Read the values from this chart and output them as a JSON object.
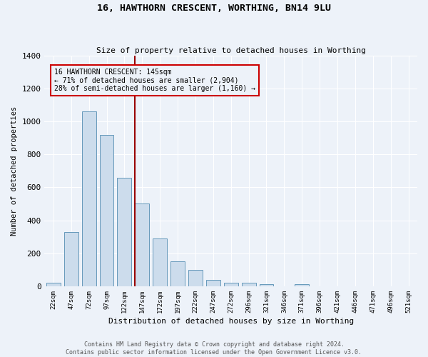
{
  "title": "16, HAWTHORN CRESCENT, WORTHING, BN14 9LU",
  "subtitle": "Size of property relative to detached houses in Worthing",
  "xlabel": "Distribution of detached houses by size in Worthing",
  "ylabel": "Number of detached properties",
  "bar_color": "#ccdcec",
  "bar_edge_color": "#6699bb",
  "bg_color": "#edf2f9",
  "grid_color": "#ffffff",
  "categories": [
    "22sqm",
    "47sqm",
    "72sqm",
    "97sqm",
    "122sqm",
    "147sqm",
    "172sqm",
    "197sqm",
    "222sqm",
    "247sqm",
    "272sqm",
    "296sqm",
    "321sqm",
    "346sqm",
    "371sqm",
    "396sqm",
    "421sqm",
    "446sqm",
    "471sqm",
    "496sqm",
    "521sqm"
  ],
  "values": [
    20,
    330,
    1060,
    920,
    660,
    500,
    290,
    150,
    100,
    37,
    20,
    20,
    12,
    0,
    12,
    0,
    0,
    0,
    0,
    0,
    0
  ],
  "ylim": [
    0,
    1400
  ],
  "yticks": [
    0,
    200,
    400,
    600,
    800,
    1000,
    1200,
    1400
  ],
  "vline_index": 5,
  "annotation_line1": "16 HAWTHORN CRESCENT: 145sqm",
  "annotation_line2": "← 71% of detached houses are smaller (2,904)",
  "annotation_line3": "28% of semi-detached houses are larger (1,160) →",
  "vline_color": "#990000",
  "annotation_box_edge": "#cc0000",
  "footer1": "Contains HM Land Registry data © Crown copyright and database right 2024.",
  "footer2": "Contains public sector information licensed under the Open Government Licence v3.0."
}
